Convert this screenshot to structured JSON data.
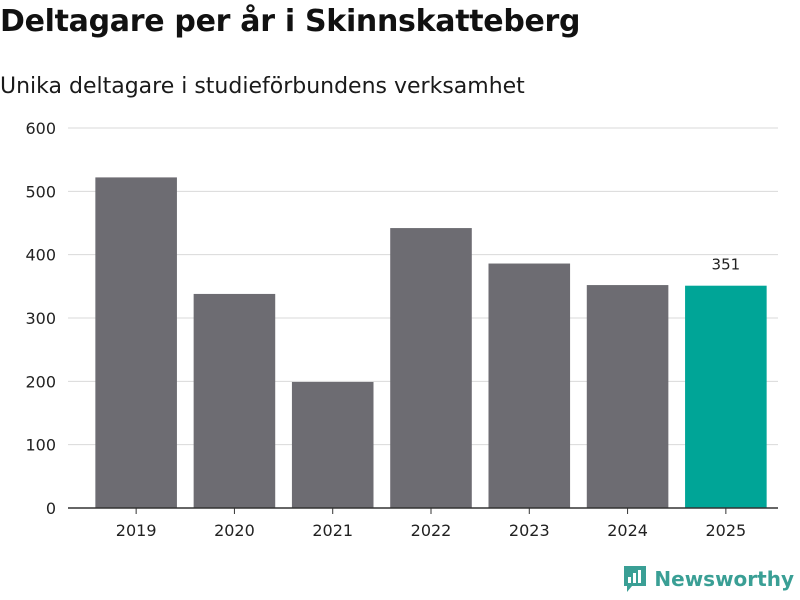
{
  "title": "Deltagare per år i Skinnskatteberg",
  "subtitle": "Unika deltagare i studieförbundens verksamhet",
  "brand": "Newsworthy",
  "colors": {
    "bar": "#6d6c72",
    "highlight": "#00a597",
    "grid": "#d9d9d9",
    "brand": "#3a9f95"
  },
  "chart_data": {
    "type": "bar",
    "categories": [
      "2019",
      "2020",
      "2021",
      "2022",
      "2023",
      "2024",
      "2025"
    ],
    "values": [
      522,
      338,
      199,
      442,
      386,
      352,
      351
    ],
    "highlight_index": 6,
    "data_labels": [
      {
        "index": 6,
        "text": "351"
      }
    ],
    "yticks": [
      0,
      100,
      200,
      300,
      400,
      500,
      600
    ],
    "ylim": [
      0,
      600
    ],
    "grid": true,
    "legend": "none"
  }
}
